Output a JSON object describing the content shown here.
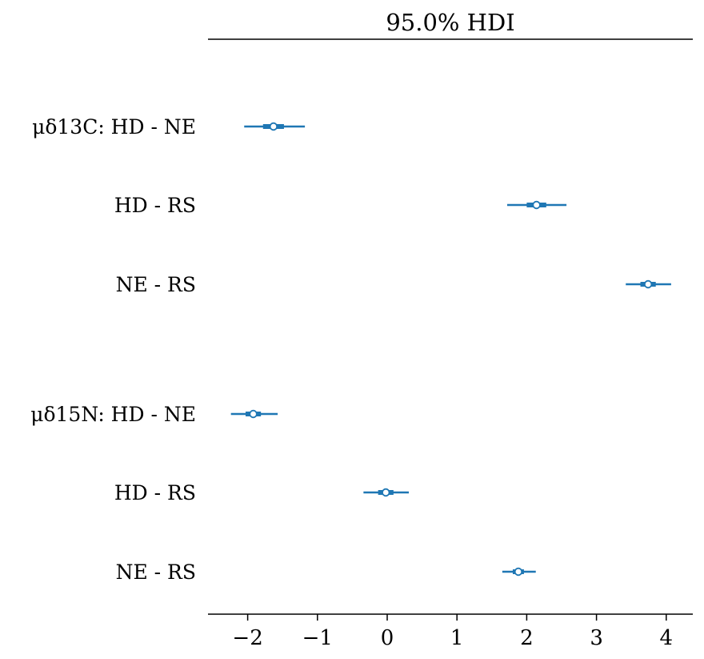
{
  "chart_data": {
    "type": "forest",
    "title": "95.0% HDI",
    "xlim": [
      -2.58,
      4.38
    ],
    "xticks": [
      -2,
      -1,
      0,
      1,
      2,
      3,
      4
    ],
    "xtick_labels": [
      "−2",
      "−1",
      "0",
      "1",
      "2",
      "3",
      "4"
    ],
    "groups": [
      {
        "name": "μδ13C",
        "rows": [
          {
            "label": "μδ13C: HD - NE",
            "mean": -1.63,
            "hdi_low": -2.05,
            "hdi_high": -1.18,
            "iqr_low": -1.78,
            "iqr_high": -1.48
          },
          {
            "label": "HD - RS",
            "mean": 2.14,
            "hdi_low": 1.72,
            "hdi_high": 2.57,
            "iqr_low": 2.0,
            "iqr_high": 2.28
          },
          {
            "label": "NE - RS",
            "mean": 3.74,
            "hdi_low": 3.42,
            "hdi_high": 4.07,
            "iqr_low": 3.63,
            "iqr_high": 3.85
          }
        ]
      },
      {
        "name": "μδ15N",
        "rows": [
          {
            "label": "μδ15N: HD - NE",
            "mean": -1.92,
            "hdi_low": -2.24,
            "hdi_high": -1.57,
            "iqr_low": -2.03,
            "iqr_high": -1.81
          },
          {
            "label": "HD - RS",
            "mean": -0.02,
            "hdi_low": -0.34,
            "hdi_high": 0.31,
            "iqr_low": -0.13,
            "iqr_high": 0.09
          },
          {
            "label": "NE - RS",
            "mean": 1.88,
            "hdi_low": 1.65,
            "hdi_high": 2.13,
            "iqr_low": 1.8,
            "iqr_high": 1.96
          }
        ]
      }
    ],
    "color": "#1f77b4"
  }
}
